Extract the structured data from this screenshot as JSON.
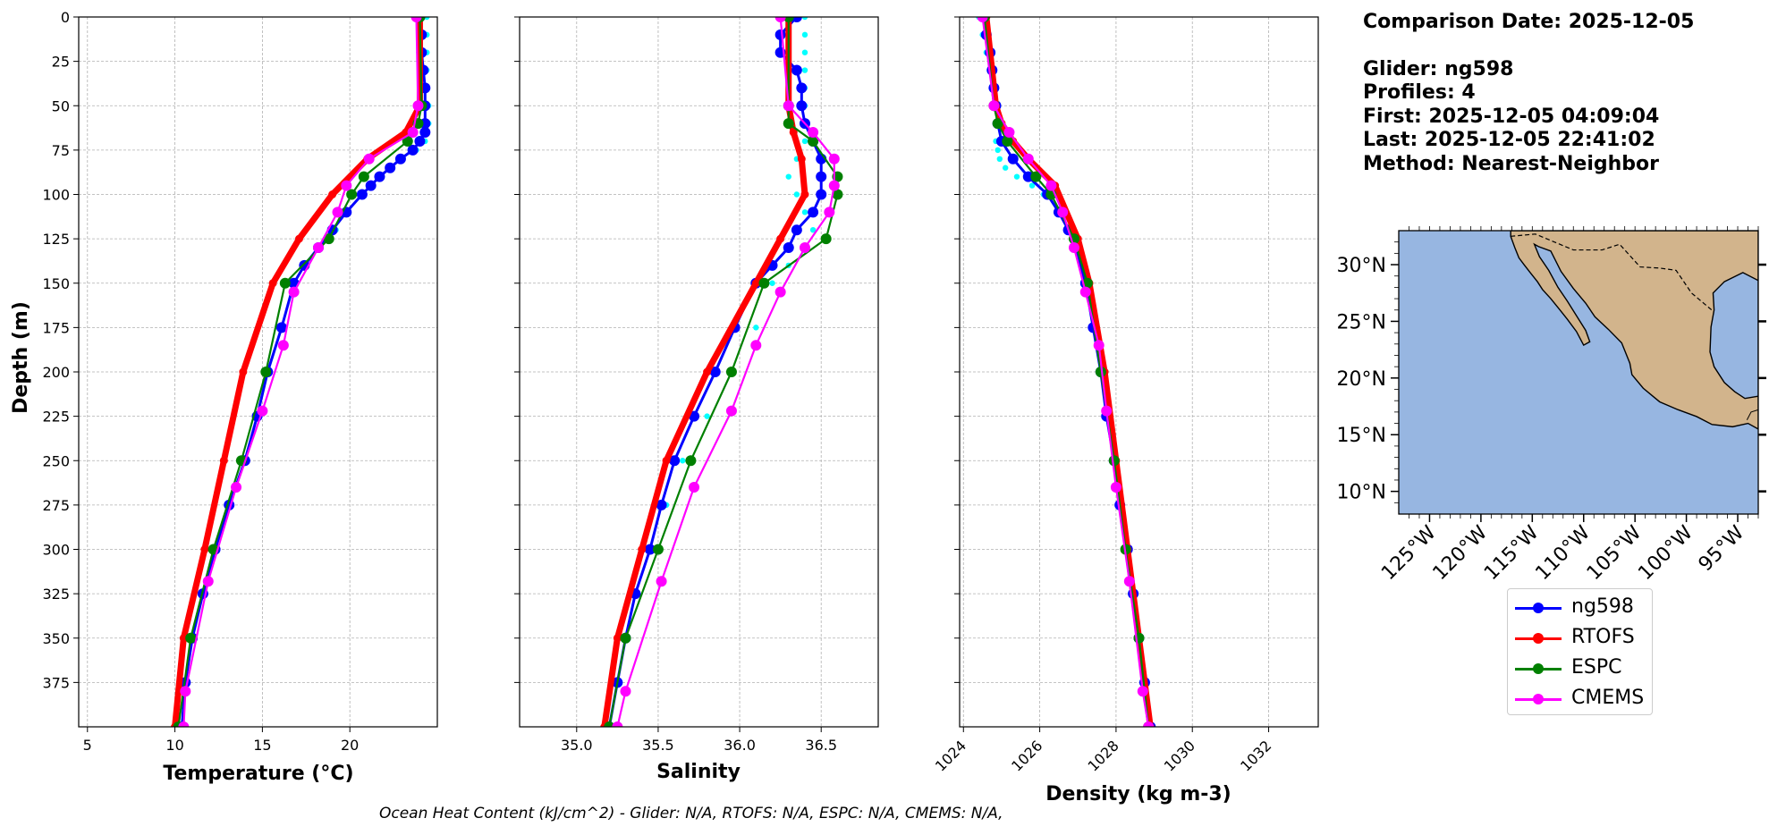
{
  "title_block": {
    "comparison_date": "Comparison Date: 2025-12-05",
    "glider": "Glider: ng598",
    "profiles": "Profiles: 4",
    "first": "First: 2025-12-05 04:09:04",
    "last": "Last: 2025-12-05 22:41:02",
    "method": "Method: Nearest-Neighbor"
  },
  "footer": "Ocean Heat Content (kJ/cm^2) - Glider: N/A,  RTOFS: N/A,  ESPC: N/A,  CMEMS: N/A,",
  "legend": [
    {
      "label": "ng598",
      "color": "#0000ff"
    },
    {
      "label": "RTOFS",
      "color": "#ff0000"
    },
    {
      "label": "ESPC",
      "color": "#008000"
    },
    {
      "label": "CMEMS",
      "color": "#ff00ff"
    }
  ],
  "map": {
    "lat_labels": [
      "30°N",
      "25°N",
      "20°N",
      "15°N",
      "10°N"
    ],
    "lon_labels": [
      "125°W",
      "120°W",
      "115°W",
      "110°W",
      "105°W",
      "100°W",
      "95°W"
    ],
    "ocean_color": "#97b6e1",
    "land_color": "#d2b48c"
  },
  "chart_data": [
    {
      "type": "line",
      "panel": "temperature",
      "xlabel": "Temperature (°C)",
      "ylabel": "Depth (m)",
      "xlim": [
        4.5,
        25
      ],
      "ylim": [
        400,
        0
      ],
      "xticks": [
        5,
        10,
        15,
        20
      ],
      "yticks": [
        0,
        25,
        50,
        75,
        100,
        125,
        150,
        175,
        200,
        225,
        250,
        275,
        300,
        325,
        350,
        375
      ],
      "grid": true,
      "series": [
        {
          "name": "glider_raw",
          "color": "#00ffff",
          "depths": [
            0,
            10,
            20,
            30,
            40,
            50,
            60,
            70,
            75,
            80,
            85,
            90,
            95,
            100,
            110,
            120,
            130,
            140,
            150,
            175,
            200,
            225,
            250,
            275,
            300,
            325,
            350,
            375,
            400
          ],
          "values": [
            24.4,
            24.4,
            24.4,
            24.4,
            24.4,
            24.5,
            24.5,
            24.3,
            23.8,
            23.0,
            22.3,
            21.8,
            21.3,
            20.8,
            19.8,
            19.2,
            18.3,
            17.4,
            16.6,
            16.0,
            15.2,
            14.6,
            13.9,
            13.0,
            12.2,
            11.6,
            11.0,
            10.6,
            10.4
          ]
        },
        {
          "name": "ng598",
          "color": "#0000ff",
          "depths": [
            0,
            10,
            20,
            30,
            40,
            50,
            60,
            65,
            70,
            75,
            80,
            85,
            90,
            95,
            100,
            110,
            120,
            130,
            140,
            150,
            175,
            200,
            225,
            250,
            275,
            300,
            325,
            350,
            375,
            400
          ],
          "values": [
            24.0,
            24.1,
            24.1,
            24.2,
            24.3,
            24.3,
            24.3,
            24.3,
            24.0,
            23.6,
            22.9,
            22.3,
            21.7,
            21.2,
            20.7,
            19.8,
            19.0,
            18.2,
            17.4,
            16.8,
            16.1,
            15.3,
            14.7,
            14.0,
            13.1,
            12.3,
            11.6,
            11.0,
            10.6,
            10.4
          ]
        },
        {
          "name": "RTOFS",
          "color": "#ff0000",
          "depths": [
            0,
            50,
            65,
            80,
            100,
            125,
            150,
            200,
            250,
            300,
            350,
            400
          ],
          "values": [
            24.0,
            24.0,
            23.2,
            21.0,
            19.0,
            17.1,
            15.6,
            13.9,
            12.8,
            11.7,
            10.5,
            10.0
          ]
        },
        {
          "name": "ESPC",
          "color": "#008000",
          "depths": [
            0,
            50,
            60,
            70,
            90,
            100,
            125,
            150,
            200,
            250,
            300,
            350,
            400
          ],
          "values": [
            24.0,
            24.1,
            23.9,
            23.3,
            20.8,
            20.1,
            18.8,
            16.3,
            15.2,
            13.8,
            12.2,
            10.9,
            10.2
          ]
        },
        {
          "name": "CMEMS",
          "color": "#ff00ff",
          "depths": [
            0,
            50,
            65,
            80,
            95,
            110,
            130,
            155,
            185,
            222,
            265,
            318,
            380,
            400
          ],
          "values": [
            23.8,
            23.9,
            23.6,
            21.1,
            19.8,
            19.3,
            18.2,
            16.8,
            16.2,
            15.0,
            13.5,
            11.9,
            10.6,
            10.5
          ]
        }
      ]
    },
    {
      "type": "line",
      "panel": "salinity",
      "xlabel": "Salinity",
      "xlim": [
        34.65,
        36.85
      ],
      "ylim": [
        400,
        0
      ],
      "xticks": [
        35.0,
        35.5,
        36.0,
        36.5
      ],
      "grid": true,
      "series": [
        {
          "name": "glider_raw",
          "color": "#00ffff",
          "depths": [
            0,
            10,
            20,
            30,
            40,
            50,
            60,
            70,
            80,
            90,
            100,
            110,
            120,
            130,
            140,
            150,
            175,
            200,
            225,
            250,
            275,
            300,
            325,
            350,
            375,
            400
          ],
          "values": [
            36.4,
            36.4,
            36.4,
            36.4,
            36.4,
            36.4,
            36.4,
            36.4,
            36.35,
            36.3,
            36.35,
            36.4,
            36.45,
            36.4,
            36.3,
            36.2,
            36.1,
            35.95,
            35.8,
            35.65,
            35.55,
            35.45,
            35.35,
            35.3,
            35.25,
            35.2
          ]
        },
        {
          "name": "ng598",
          "color": "#0000ff",
          "depths": [
            0,
            10,
            20,
            30,
            40,
            50,
            60,
            70,
            80,
            90,
            100,
            110,
            120,
            130,
            140,
            150,
            175,
            200,
            225,
            250,
            275,
            300,
            325,
            350,
            375,
            400
          ],
          "values": [
            36.35,
            36.25,
            36.25,
            36.35,
            36.38,
            36.38,
            36.4,
            36.45,
            36.5,
            36.5,
            36.5,
            36.45,
            36.35,
            36.3,
            36.2,
            36.1,
            35.97,
            35.85,
            35.72,
            35.6,
            35.52,
            35.45,
            35.36,
            35.3,
            35.25,
            35.2
          ]
        },
        {
          "name": "RTOFS",
          "color": "#ff0000",
          "depths": [
            0,
            50,
            65,
            80,
            100,
            125,
            150,
            200,
            250,
            300,
            350,
            400
          ],
          "values": [
            36.3,
            36.3,
            36.33,
            36.38,
            36.4,
            36.25,
            36.1,
            35.8,
            35.55,
            35.4,
            35.25,
            35.17
          ]
        },
        {
          "name": "ESPC",
          "color": "#008000",
          "depths": [
            0,
            50,
            60,
            70,
            90,
            100,
            125,
            150,
            200,
            250,
            300,
            350,
            400
          ],
          "values": [
            36.3,
            36.3,
            36.3,
            36.45,
            36.6,
            36.6,
            36.53,
            36.15,
            35.95,
            35.7,
            35.5,
            35.3,
            35.2
          ]
        },
        {
          "name": "CMEMS",
          "color": "#ff00ff",
          "depths": [
            0,
            50,
            65,
            80,
            95,
            110,
            130,
            155,
            185,
            222,
            265,
            318,
            380,
            400
          ],
          "values": [
            36.25,
            36.3,
            36.45,
            36.58,
            36.58,
            36.55,
            36.4,
            36.25,
            36.1,
            35.95,
            35.72,
            35.52,
            35.3,
            35.25
          ]
        }
      ]
    },
    {
      "type": "line",
      "panel": "density",
      "xlabel": "Density (kg m-3)",
      "xlim": [
        1023.9,
        1033.3
      ],
      "ylim": [
        400,
        0
      ],
      "xticks": [
        1024,
        1026,
        1028,
        1030,
        1032
      ],
      "grid": true,
      "series": [
        {
          "name": "glider_raw",
          "color": "#00ffff",
          "depths": [
            0,
            10,
            20,
            30,
            40,
            50,
            60,
            70,
            75,
            80,
            85,
            90,
            95,
            100,
            110,
            120,
            130,
            150,
            175,
            200,
            250,
            300,
            350,
            400
          ],
          "values": [
            1024.4,
            1024.5,
            1024.6,
            1024.7,
            1024.75,
            1024.8,
            1024.85,
            1024.85,
            1024.9,
            1024.95,
            1025.1,
            1025.4,
            1025.8,
            1026.1,
            1026.5,
            1026.7,
            1026.9,
            1027.2,
            1027.4,
            1027.6,
            1027.95,
            1028.3,
            1028.55,
            1028.9
          ]
        },
        {
          "name": "ng598",
          "color": "#0000ff",
          "depths": [
            0,
            10,
            20,
            30,
            40,
            50,
            60,
            70,
            80,
            90,
            100,
            110,
            120,
            130,
            150,
            175,
            200,
            225,
            250,
            275,
            300,
            325,
            350,
            375,
            400
          ],
          "values": [
            1024.55,
            1024.6,
            1024.7,
            1024.75,
            1024.8,
            1024.85,
            1024.9,
            1025.0,
            1025.3,
            1025.7,
            1026.2,
            1026.5,
            1026.75,
            1026.95,
            1027.2,
            1027.4,
            1027.6,
            1027.75,
            1027.95,
            1028.1,
            1028.3,
            1028.45,
            1028.6,
            1028.75,
            1028.9
          ]
        },
        {
          "name": "RTOFS",
          "color": "#ff0000",
          "depths": [
            0,
            50,
            60,
            70,
            80,
            95,
            125,
            150,
            200,
            250,
            300,
            350,
            400
          ],
          "values": [
            1024.6,
            1024.85,
            1025.0,
            1025.3,
            1025.7,
            1026.4,
            1027.0,
            1027.3,
            1027.7,
            1028.0,
            1028.3,
            1028.6,
            1028.9
          ]
        },
        {
          "name": "ESPC",
          "color": "#008000",
          "depths": [
            0,
            50,
            60,
            70,
            90,
            100,
            125,
            150,
            200,
            250,
            300,
            350,
            400
          ],
          "values": [
            1024.55,
            1024.8,
            1024.9,
            1025.15,
            1025.9,
            1026.3,
            1026.9,
            1027.25,
            1027.6,
            1027.95,
            1028.25,
            1028.6,
            1028.85
          ]
        },
        {
          "name": "CMEMS",
          "color": "#ff00ff",
          "depths": [
            0,
            50,
            65,
            80,
            95,
            110,
            130,
            155,
            185,
            222,
            265,
            318,
            380,
            400
          ],
          "values": [
            1024.5,
            1024.8,
            1025.2,
            1025.7,
            1026.3,
            1026.6,
            1026.9,
            1027.2,
            1027.55,
            1027.75,
            1028.0,
            1028.35,
            1028.7,
            1028.85
          ]
        }
      ]
    }
  ]
}
